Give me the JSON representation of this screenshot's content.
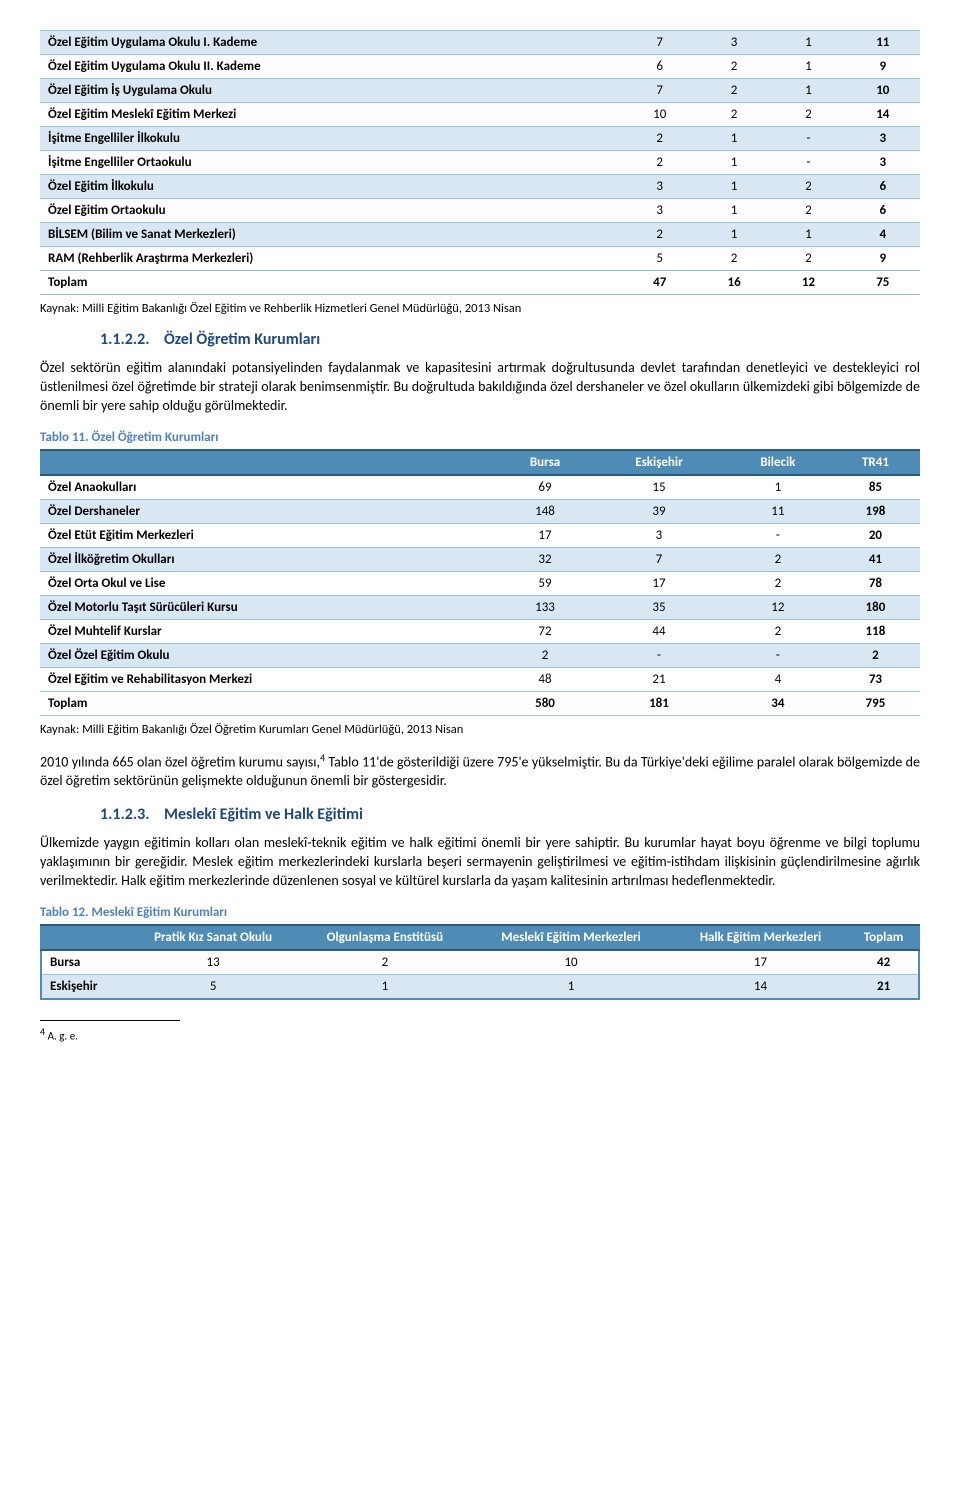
{
  "table10": {
    "rows": [
      {
        "label": "Özel Eğitim Uygulama Okulu I. Kademe",
        "c1": "7",
        "c2": "3",
        "c3": "1",
        "c4": "11",
        "odd": true
      },
      {
        "label": "Özel Eğitim Uygulama Okulu II. Kademe",
        "c1": "6",
        "c2": "2",
        "c3": "1",
        "c4": "9",
        "odd": false
      },
      {
        "label": "Özel Eğitim İş Uygulama Okulu",
        "c1": "7",
        "c2": "2",
        "c3": "1",
        "c4": "10",
        "odd": true
      },
      {
        "label": "Özel Eğitim Meslekî Eğitim Merkezi",
        "c1": "10",
        "c2": "2",
        "c3": "2",
        "c4": "14",
        "odd": false
      },
      {
        "label": "İşitme Engelliler İlkokulu",
        "c1": "2",
        "c2": "1",
        "c3": "-",
        "c4": "3",
        "odd": true
      },
      {
        "label": "İşitme Engelliler Ortaokulu",
        "c1": "2",
        "c2": "1",
        "c3": "-",
        "c4": "3",
        "odd": false
      },
      {
        "label": "Özel Eğitim İlkokulu",
        "c1": "3",
        "c2": "1",
        "c3": "2",
        "c4": "6",
        "odd": true
      },
      {
        "label": "Özel Eğitim Ortaokulu",
        "c1": "3",
        "c2": "1",
        "c3": "2",
        "c4": "6",
        "odd": false
      },
      {
        "label": "BİLSEM (Bilim ve Sanat Merkezleri)",
        "c1": "2",
        "c2": "1",
        "c3": "1",
        "c4": "4",
        "odd": true
      },
      {
        "label": "RAM (Rehberlik Araştırma Merkezleri)",
        "c1": "5",
        "c2": "2",
        "c3": "2",
        "c4": "9",
        "odd": false
      }
    ],
    "total": {
      "label": "Toplam",
      "c1": "47",
      "c2": "16",
      "c3": "12",
      "c4": "75"
    },
    "source": "Kaynak: Milli Eğitim Bakanlığı Özel Eğitim ve Rehberlik Hizmetleri Genel Müdürlüğü, 2013 Nisan"
  },
  "section1": {
    "num": "1.1.2.2.",
    "title": "Özel Öğretim Kurumları",
    "body": "Özel sektörün eğitim alanındaki potansiyelinden faydalanmak ve kapasitesini artırmak doğrultusunda devlet tarafından denetleyici ve destekleyici rol üstlenilmesi özel öğretimde bir strateji olarak benimsenmiştir. Bu doğrultuda bakıldığında özel dershaneler ve özel okulların ülkemizdeki gibi bölgemizde de önemli bir yere sahip olduğu görülmektedir."
  },
  "table11": {
    "caption": "Tablo 11. Özel Öğretim Kurumları",
    "headers": [
      "",
      "Bursa",
      "Eskişehir",
      "Bilecik",
      "TR41"
    ],
    "rows": [
      {
        "label": "Özel Anaokulları",
        "c1": "69",
        "c2": "15",
        "c3": "1",
        "c4": "85",
        "odd": false
      },
      {
        "label": "Özel Dershaneler",
        "c1": "148",
        "c2": "39",
        "c3": "11",
        "c4": "198",
        "odd": true
      },
      {
        "label": "Özel Etüt Eğitim Merkezleri",
        "c1": "17",
        "c2": "3",
        "c3": "-",
        "c4": "20",
        "odd": false
      },
      {
        "label": "Özel İlköğretim Okulları",
        "c1": "32",
        "c2": "7",
        "c3": "2",
        "c4": "41",
        "odd": true
      },
      {
        "label": "Özel Orta Okul ve Lise",
        "c1": "59",
        "c2": "17",
        "c3": "2",
        "c4": "78",
        "odd": false
      },
      {
        "label": "Özel Motorlu Taşıt Sürücüleri Kursu",
        "c1": "133",
        "c2": "35",
        "c3": "12",
        "c4": "180",
        "odd": true
      },
      {
        "label": "Özel Muhtelif Kurslar",
        "c1": "72",
        "c2": "44",
        "c3": "2",
        "c4": "118",
        "odd": false
      },
      {
        "label": "Özel Özel Eğitim Okulu",
        "c1": "2",
        "c2": "-",
        "c3": "-",
        "c4": "2",
        "odd": true
      },
      {
        "label": "Özel Eğitim ve Rehabilitasyon Merkezi",
        "c1": "48",
        "c2": "21",
        "c3": "4",
        "c4": "73",
        "odd": false
      }
    ],
    "total": {
      "label": "Toplam",
      "c1": "580",
      "c2": "181",
      "c3": "34",
      "c4": "795"
    },
    "source": "Kaynak: Milli Eğitim Bakanlığı Özel Öğretim Kurumları Genel Müdürlüğü, 2013 Nisan"
  },
  "para2": {
    "pre": "2010 yılında 665 olan özel öğretim kurumu sayısı,",
    "fn": "4",
    "post": " Tablo 11'de gösterildiği üzere 795'e yükselmiştir. Bu da Türkiye'deki eğilime paralel olarak bölgemizde de özel öğretim sektörünün gelişmekte olduğunun önemli bir göstergesidir."
  },
  "section2": {
    "num": "1.1.2.3.",
    "title": "Meslekî Eğitim ve Halk Eğitimi",
    "body": "Ülkemizde yaygın eğitimin kolları olan meslekî-teknik eğitim ve halk eğitimi önemli bir yere sahiptir. Bu kurumlar hayat boyu öğrenme ve bilgi toplumu yaklaşımının bir gereğidir. Meslek eğitim merkezlerindeki kurslarla beşeri sermayenin geliştirilmesi ve eğitim-istihdam ilişkisinin güçlendirilmesine ağırlık verilmektedir. Halk eğitim merkezlerinde düzenlenen sosyal ve kültürel kurslarla da yaşam kalitesinin artırılması hedeflenmektedir."
  },
  "table12": {
    "caption": "Tablo 12.  Meslekî Eğitim Kurumları",
    "headers": [
      "",
      "Pratik Kız Sanat Okulu",
      "Olgunlaşma Enstitüsü",
      "Meslekî Eğitim Merkezleri",
      "Halk Eğitim Merkezleri",
      "Toplam"
    ],
    "rows": [
      {
        "label": "Bursa",
        "c1": "13",
        "c2": "2",
        "c3": "10",
        "c4": "17",
        "c5": "42",
        "odd": false
      },
      {
        "label": "Eskişehir",
        "c1": "5",
        "c2": "1",
        "c3": "1",
        "c4": "14",
        "c5": "21",
        "odd": true
      }
    ]
  },
  "footnote": {
    "num": "4",
    "text": " A. g. e."
  }
}
